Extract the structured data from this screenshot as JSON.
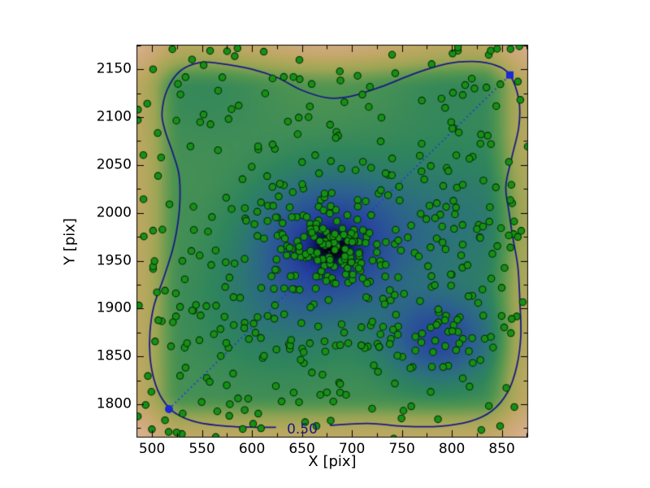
{
  "chart_data": {
    "type": "scatter",
    "title": "",
    "xlabel": "X [pix]",
    "ylabel": "Y [pix]",
    "contour_label": "0.50",
    "xlim": [
      484.5,
      876.3
    ],
    "ylim": [
      1765.2,
      2175.6
    ],
    "x_ticks": [
      500,
      550,
      600,
      650,
      700,
      750,
      800,
      850
    ],
    "y_ticks": [
      1800,
      1850,
      1900,
      1950,
      2000,
      2050,
      2100,
      2150
    ],
    "x_minor_ticks": [
      525,
      575,
      625,
      675,
      725,
      775,
      825,
      875
    ],
    "y_minor_ticks": [
      1775,
      1825,
      1875,
      1925,
      1975,
      2025,
      2075,
      2125,
      2175
    ],
    "grid": false,
    "legend": null,
    "colors": {
      "point_fill": "#169016",
      "point_edge": "#052d05",
      "contour": "#191985",
      "contour_label": "#191985",
      "dotted_line": "#2438dd",
      "endpoint_marker": "#1b2ace",
      "axis": "#000000",
      "background": "#ffffff"
    },
    "point_radius": 4.2,
    "seed": 20,
    "clusters": [
      {
        "type": "uniform",
        "n": 320,
        "x0": 484,
        "x1": 877,
        "y0": 1764,
        "y1": 2176
      },
      {
        "type": "gauss",
        "n": 130,
        "cx": 678,
        "cy": 1967,
        "sx": 42,
        "sy": 40
      },
      {
        "type": "gauss",
        "n": 25,
        "cx": 681,
        "cy": 1964,
        "sx": 14,
        "sy": 13
      },
      {
        "type": "gauss",
        "n": 45,
        "cx": 787,
        "cy": 1869,
        "sx": 34,
        "sy": 28
      },
      {
        "type": "gauss",
        "n": 30,
        "cx": 625,
        "cy": 1895,
        "sx": 50,
        "sy": 42
      },
      {
        "type": "gauss",
        "n": 35,
        "cx": 802,
        "cy": 1988,
        "sx": 60,
        "sy": 52
      }
    ],
    "density": {
      "base": 0.88,
      "edge_width": 48,
      "edge_floor": 0.45,
      "gaussians": [
        [
          1.0,
          678,
          1967,
          50,
          46
        ],
        [
          0.75,
          681,
          1964,
          15,
          14
        ],
        [
          0.8,
          787,
          1869,
          36,
          30
        ],
        [
          0.22,
          625,
          1895,
          52,
          44
        ],
        [
          0.28,
          802,
          1988,
          64,
          54
        ],
        [
          -0.15,
          676,
          2190,
          70,
          48
        ],
        [
          0.1,
          560,
          2135,
          48,
          40
        ],
        [
          0.1,
          800,
          2135,
          52,
          40
        ]
      ],
      "stops": [
        [
          0.0,
          "#f5ebe1"
        ],
        [
          0.04,
          "#dfbb9d"
        ],
        [
          0.09,
          "#d0aa7d"
        ],
        [
          0.15,
          "#bba761"
        ],
        [
          0.22,
          "#9aa554"
        ],
        [
          0.3,
          "#539650"
        ],
        [
          0.37,
          "#2f855c"
        ],
        [
          0.44,
          "#2c7478"
        ],
        [
          0.52,
          "#2c6090"
        ],
        [
          0.62,
          "#28489c"
        ],
        [
          0.74,
          "#1d2d92"
        ],
        [
          0.85,
          "#0f155c"
        ],
        [
          0.93,
          "#050722"
        ],
        [
          1.0,
          "#000000"
        ]
      ]
    },
    "contour_level": 0.5,
    "contour_path": [
      [
        678,
        1778
      ],
      [
        716,
        1780
      ],
      [
        752,
        1777
      ],
      [
        788,
        1777
      ],
      [
        818,
        1782
      ],
      [
        840,
        1793
      ],
      [
        856,
        1813
      ],
      [
        865,
        1840
      ],
      [
        869,
        1872
      ],
      [
        868,
        1908
      ],
      [
        866,
        1944
      ],
      [
        861,
        1974
      ],
      [
        857,
        2002
      ],
      [
        854,
        2028
      ],
      [
        860,
        2058
      ],
      [
        867,
        2090
      ],
      [
        867,
        2118
      ],
      [
        858,
        2144
      ],
      [
        844,
        2154
      ],
      [
        822,
        2158
      ],
      [
        796,
        2156
      ],
      [
        764,
        2146
      ],
      [
        730,
        2132
      ],
      [
        700,
        2122
      ],
      [
        676,
        2120
      ],
      [
        650,
        2128
      ],
      [
        626,
        2141
      ],
      [
        600,
        2150
      ],
      [
        568,
        2156
      ],
      [
        548,
        2157
      ],
      [
        528,
        2148
      ],
      [
        515,
        2128
      ],
      [
        510,
        2104
      ],
      [
        513,
        2086
      ],
      [
        521,
        2062
      ],
      [
        527,
        2040
      ],
      [
        528,
        2014
      ],
      [
        526,
        1990
      ],
      [
        521,
        1963
      ],
      [
        512,
        1933
      ],
      [
        502,
        1903
      ],
      [
        498,
        1876
      ],
      [
        498,
        1850
      ],
      [
        502,
        1826
      ],
      [
        510,
        1806
      ],
      [
        523,
        1791
      ],
      [
        546,
        1781
      ],
      [
        576,
        1777
      ],
      [
        604,
        1776
      ],
      [
        624,
        1776
      ]
    ],
    "diagonal_line": {
      "x1": 517,
      "y1": 1795,
      "x2": 858,
      "y2": 2144,
      "dash": [
        1.6,
        3.8
      ],
      "width": 2
    },
    "endpoint_markers": [
      {
        "shape": "circle",
        "x": 517,
        "y": 1795,
        "size": 10
      },
      {
        "shape": "square",
        "x": 858,
        "y": 2144,
        "size": 9
      }
    ]
  }
}
